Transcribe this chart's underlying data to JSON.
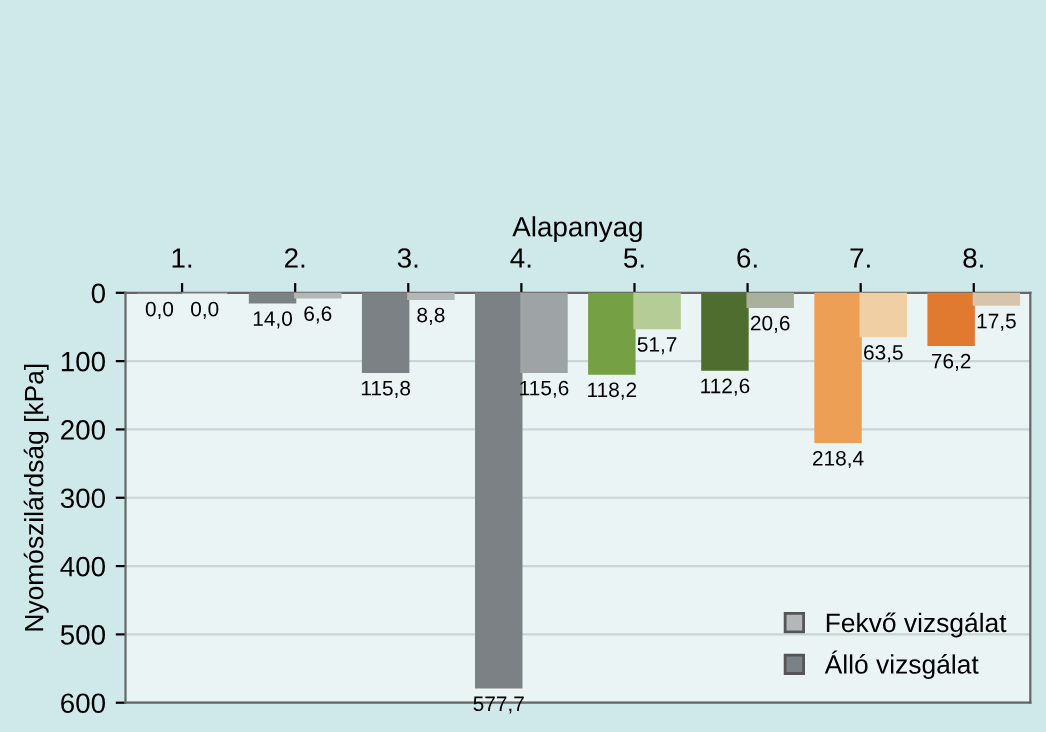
{
  "chart_data": {
    "type": "bar",
    "xlabel": "Alapanyag",
    "ylabel": "Nyomószilárdság [kPa]",
    "categories": [
      "1.",
      "2.",
      "3.",
      "4.",
      "5.",
      "6.",
      "7.",
      "8."
    ],
    "series": [
      {
        "name": "Álló vizsgálat",
        "color": "#7b8184",
        "colors": [
          "#7b8184",
          "#7b8184",
          "#7b8184",
          "#7b8184",
          "#76a044",
          "#4f6d2f",
          "#eda055",
          "#e07a30"
        ],
        "values": [
          0.0,
          14.0,
          115.8,
          577.7,
          118.2,
          112.6,
          218.4,
          76.2
        ],
        "value_labels": [
          "0,0",
          "14,0",
          "115,8",
          "577,7",
          "118,2",
          "112,6",
          "218,4",
          "76,2"
        ]
      },
      {
        "name": "Fekvő vizsgálat",
        "color": "#b3b7b8",
        "colors": [
          "#b3b7b8",
          "#b3b7b8",
          "#b3b7b8",
          "#9ea3a5",
          "#b6cc96",
          "#a9b09d",
          "#f0cfa5",
          "#d7c4ac"
        ],
        "values": [
          0.0,
          6.6,
          8.8,
          115.6,
          51.7,
          20.6,
          63.5,
          17.5
        ],
        "value_labels": [
          "0,0",
          "6,6",
          "8,8",
          "115,6",
          "51,7",
          "20,6",
          "63,5",
          "17,5"
        ]
      }
    ],
    "ylim": [
      600,
      0
    ],
    "yticks": [
      0,
      100,
      200,
      300,
      400,
      500,
      600
    ],
    "grid": "y",
    "legend": "bottom right"
  }
}
